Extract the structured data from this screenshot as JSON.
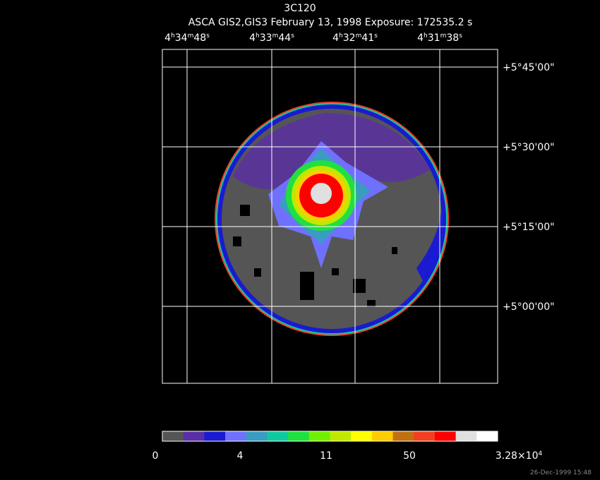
{
  "header": {
    "title": "3C120",
    "subtitle": "ASCA GIS2,GIS3 February 13, 1998 Exposure: 172535.2 s"
  },
  "ra_labels": [
    [
      "4",
      "h",
      "34",
      "m",
      "48",
      "s"
    ],
    [
      "4",
      "h",
      "33",
      "m",
      "44",
      "s"
    ],
    [
      "4",
      "h",
      "32",
      "m",
      "41",
      "s"
    ],
    [
      "4",
      "h",
      "31",
      "m",
      "38",
      "s"
    ]
  ],
  "dec_labels": [
    "+5°45'00\"",
    "+5°30'00\"",
    "+5°15'00\"",
    "+5°00'00\""
  ],
  "colorbar": {
    "colors": [
      "#555555",
      "#5a2ea6",
      "#1a1ad0",
      "#7070ff",
      "#3a9cc0",
      "#10c8a0",
      "#20e040",
      "#70f000",
      "#c0e800",
      "#ffff00",
      "#ffcc00",
      "#c07010",
      "#f04020",
      "#ff0000",
      "#e0e0e0",
      "#ffffff"
    ],
    "labels": [
      [
        "0"
      ],
      [
        "4"
      ],
      [
        "11"
      ],
      [
        "50"
      ],
      [
        "3.28×10",
        "4"
      ]
    ]
  },
  "timestamp": "26-Dec-1999 15:48"
}
